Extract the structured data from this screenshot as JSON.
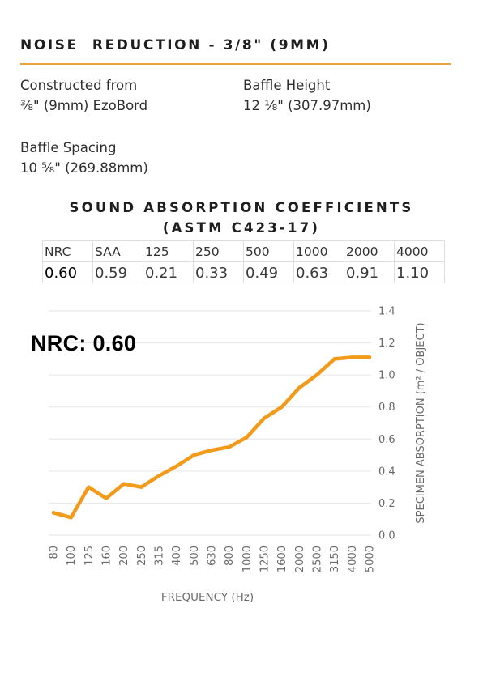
{
  "header": {
    "title": "NOISE  REDUCTION - 3/8\" (9MM)",
    "accent_color": "#e8a33d"
  },
  "specs": {
    "constructed_label": "Constructed from",
    "constructed_value": "⅜\" (9mm) EzoBord",
    "height_label": "Baffle Height",
    "height_value": "12 ⅛\" (307.97mm)",
    "spacing_label": "Baffle Spacing",
    "spacing_value": "10 ⅝\" (269.88mm)"
  },
  "coefficients": {
    "title_line1": "SOUND ABSORPTION COEFFICIENTS",
    "title_line2": "(ASTM C423-17)",
    "headers": [
      "NRC",
      "SAA",
      "125",
      "250",
      "500",
      "1000",
      "2000",
      "4000"
    ],
    "values": [
      "0.60",
      "0.59",
      "0.21",
      "0.33",
      "0.49",
      "0.63",
      "0.91",
      "1.10"
    ]
  },
  "nrc_label": "NRC: 0.60",
  "chart_data": {
    "type": "line",
    "color": "#f29b1b",
    "xlabel": "FREQUENCY (Hz)",
    "ylabel": "SPECIMEN ABSORPTION (m² / OBJECT)",
    "ylim": [
      0,
      1.4
    ],
    "yticks": [
      "0.0",
      "0.2",
      "0.4",
      "0.6",
      "0.8",
      "1.0",
      "1.2",
      "1.4"
    ],
    "y_axis_position": "right",
    "grid": "horizontal",
    "categories": [
      "80",
      "100",
      "125",
      "160",
      "200",
      "250",
      "315",
      "400",
      "500",
      "630",
      "800",
      "1000",
      "1250",
      "1600",
      "2000",
      "2500",
      "3150",
      "4000",
      "5000"
    ],
    "values": [
      0.14,
      0.11,
      0.3,
      0.23,
      0.32,
      0.3,
      0.37,
      0.43,
      0.5,
      0.53,
      0.55,
      0.61,
      0.73,
      0.8,
      0.92,
      1.0,
      1.1,
      1.11,
      1.11
    ]
  }
}
